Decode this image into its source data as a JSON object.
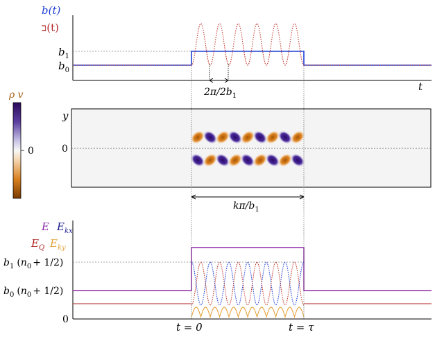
{
  "top_panel": {
    "legend_b": "b(t)",
    "legend_b2": "ב(t)",
    "tick_b1": "b",
    "tick_b1_sub": "1",
    "tick_b0": "b",
    "tick_b0_sub": "0",
    "xlabel": "t",
    "period_label": "2π/2b",
    "period_label_sub": "1"
  },
  "middle_panel": {
    "colorbar_label": "ρ v",
    "colorbar_zero": "0",
    "ylabel": "y",
    "y_zero": "0",
    "span_label": "kπ/b",
    "span_label_sub": "1"
  },
  "bottom_panel": {
    "legend_E": "E",
    "legend_Ekx": "E",
    "legend_Ekx_sub": "kx",
    "legend_EQ": "E",
    "legend_EQ_sub": "Q",
    "legend_Eky": "E",
    "legend_Eky_sub": "ky",
    "tick_b1_expr": "b",
    "tick_b1_expr_sub": "1",
    "tick_b1_expr_rest": "(n",
    "tick_b1_expr_rest_sub": "0",
    "tick_b1_expr_tail": "+ 1/2)",
    "tick_b0_expr": "b",
    "tick_b0_expr_sub": "0",
    "tick_b0_expr_rest": "(n",
    "tick_b0_expr_rest_sub": "0",
    "tick_b0_expr_tail": "+ 1/2)",
    "tick_zero": "0",
    "t_start": "t = 0",
    "t_end": "t = τ"
  },
  "colors": {
    "blue": "#1f3fd6",
    "red": "#c0392b",
    "purple": "#8e2aa8",
    "orange": "#e5a23a",
    "brown": "#a8611a",
    "navy": "#1a1a8c",
    "dark_red": "#b22222"
  },
  "chart_data": [
    {
      "type": "line",
      "panel": "top",
      "x_range": [
        0,
        1
      ],
      "series": [
        {
          "name": "b(t)",
          "color": "blue",
          "shape": "step",
          "values": {
            "before": 0,
            "during": 1,
            "after": 0
          }
        },
        {
          "name": "ב(t)",
          "color": "red",
          "shape": "oscillating",
          "peaks": 6
        }
      ],
      "yticks": [
        "b1",
        "b0"
      ]
    },
    {
      "type": "heatmap",
      "panel": "middle",
      "quantity": "ρ v",
      "lobes_per_row": 9,
      "rows": 2
    },
    {
      "type": "line",
      "panel": "bottom",
      "series": [
        {
          "name": "E",
          "color": "purple"
        },
        {
          "name": "E_kx",
          "color": "blue"
        },
        {
          "name": "E_Q",
          "color": "red"
        },
        {
          "name": "E_ky",
          "color": "orange"
        }
      ],
      "yticks": [
        "b1 (n0 + 1/2)",
        "b0 (n0 + 1/2)",
        "0"
      ],
      "xticks": [
        "t = 0",
        "t = τ"
      ]
    }
  ]
}
